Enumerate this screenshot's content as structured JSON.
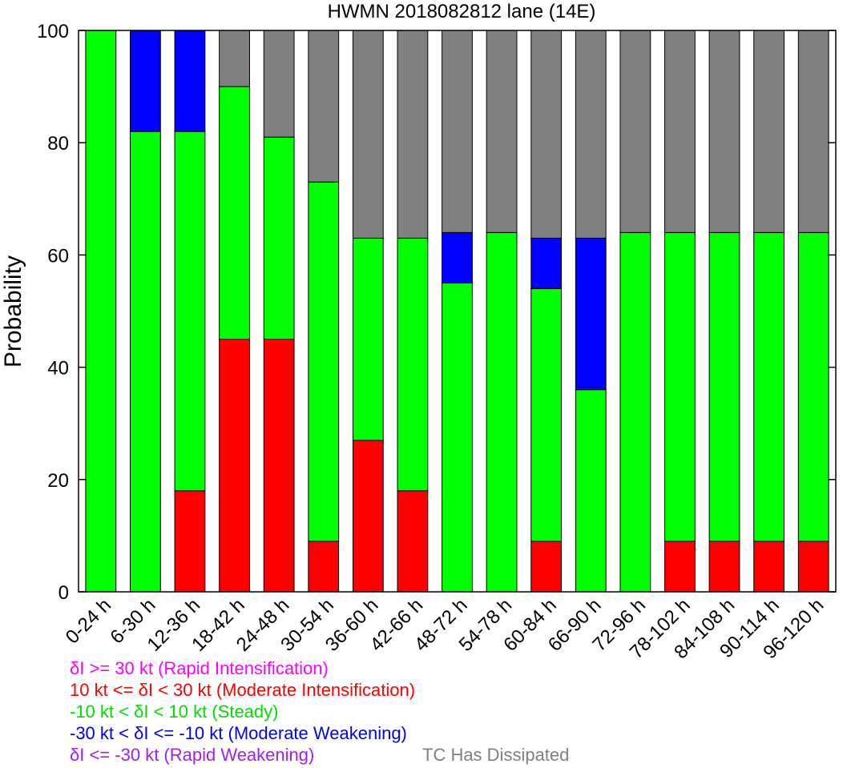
{
  "chart_data": {
    "type": "bar",
    "stacked": true,
    "title": "HWMN 2018082812 lane (14E)",
    "ylabel": "Probability",
    "xlabel": "",
    "ylim": [
      0,
      100
    ],
    "yticks": [
      "0",
      "20",
      "40",
      "60",
      "80",
      "100"
    ],
    "grid": false,
    "categories": [
      "0-24 h",
      "6-30 h",
      "12-36 h",
      "18-42 h",
      "24-48 h",
      "30-54 h",
      "36-60 h",
      "42-66 h",
      "48-72 h",
      "54-78 h",
      "60-84 h",
      "66-90 h",
      "72-96 h",
      "78-102 h",
      "84-108 h",
      "90-114 h",
      "96-120 h"
    ],
    "series": [
      {
        "name": "δI >= 30 kt (Rapid Intensification)",
        "color": "#ff00ff",
        "values": [
          0,
          0,
          0,
          0,
          0,
          0,
          0,
          0,
          0,
          0,
          0,
          0,
          0,
          0,
          0,
          0,
          0
        ]
      },
      {
        "name": "10 kt <= δI < 30 kt (Moderate Intensification)",
        "color": "#ff0000",
        "values": [
          0,
          0,
          18,
          45,
          45,
          9,
          27,
          18,
          0,
          0,
          9,
          0,
          0,
          9,
          9,
          9,
          9
        ]
      },
      {
        "name": "-10 kt < δI < 10 kt (Steady)",
        "color": "#00ff00",
        "values": [
          100,
          82,
          64,
          45,
          36,
          64,
          36,
          45,
          55,
          64,
          45,
          36,
          64,
          55,
          55,
          55,
          55
        ]
      },
      {
        "name": "-30 kt < δI <= -10 kt (Moderate Weakening)",
        "color": "#0000ff",
        "values": [
          0,
          18,
          18,
          0,
          0,
          0,
          0,
          0,
          9,
          0,
          9,
          27,
          0,
          0,
          0,
          0,
          0
        ]
      },
      {
        "name": "δI <= -30 kt (Rapid Weakening)",
        "color": "#a020f0",
        "values": [
          0,
          0,
          0,
          0,
          0,
          0,
          0,
          0,
          0,
          0,
          0,
          0,
          0,
          0,
          0,
          0,
          0
        ]
      },
      {
        "name": "TC Has Dissipated",
        "color": "#808080",
        "values": [
          0,
          0,
          0,
          10,
          19,
          27,
          37,
          37,
          36,
          36,
          37,
          37,
          36,
          36,
          36,
          36,
          36
        ]
      }
    ],
    "legend_position": "bottom-left"
  }
}
